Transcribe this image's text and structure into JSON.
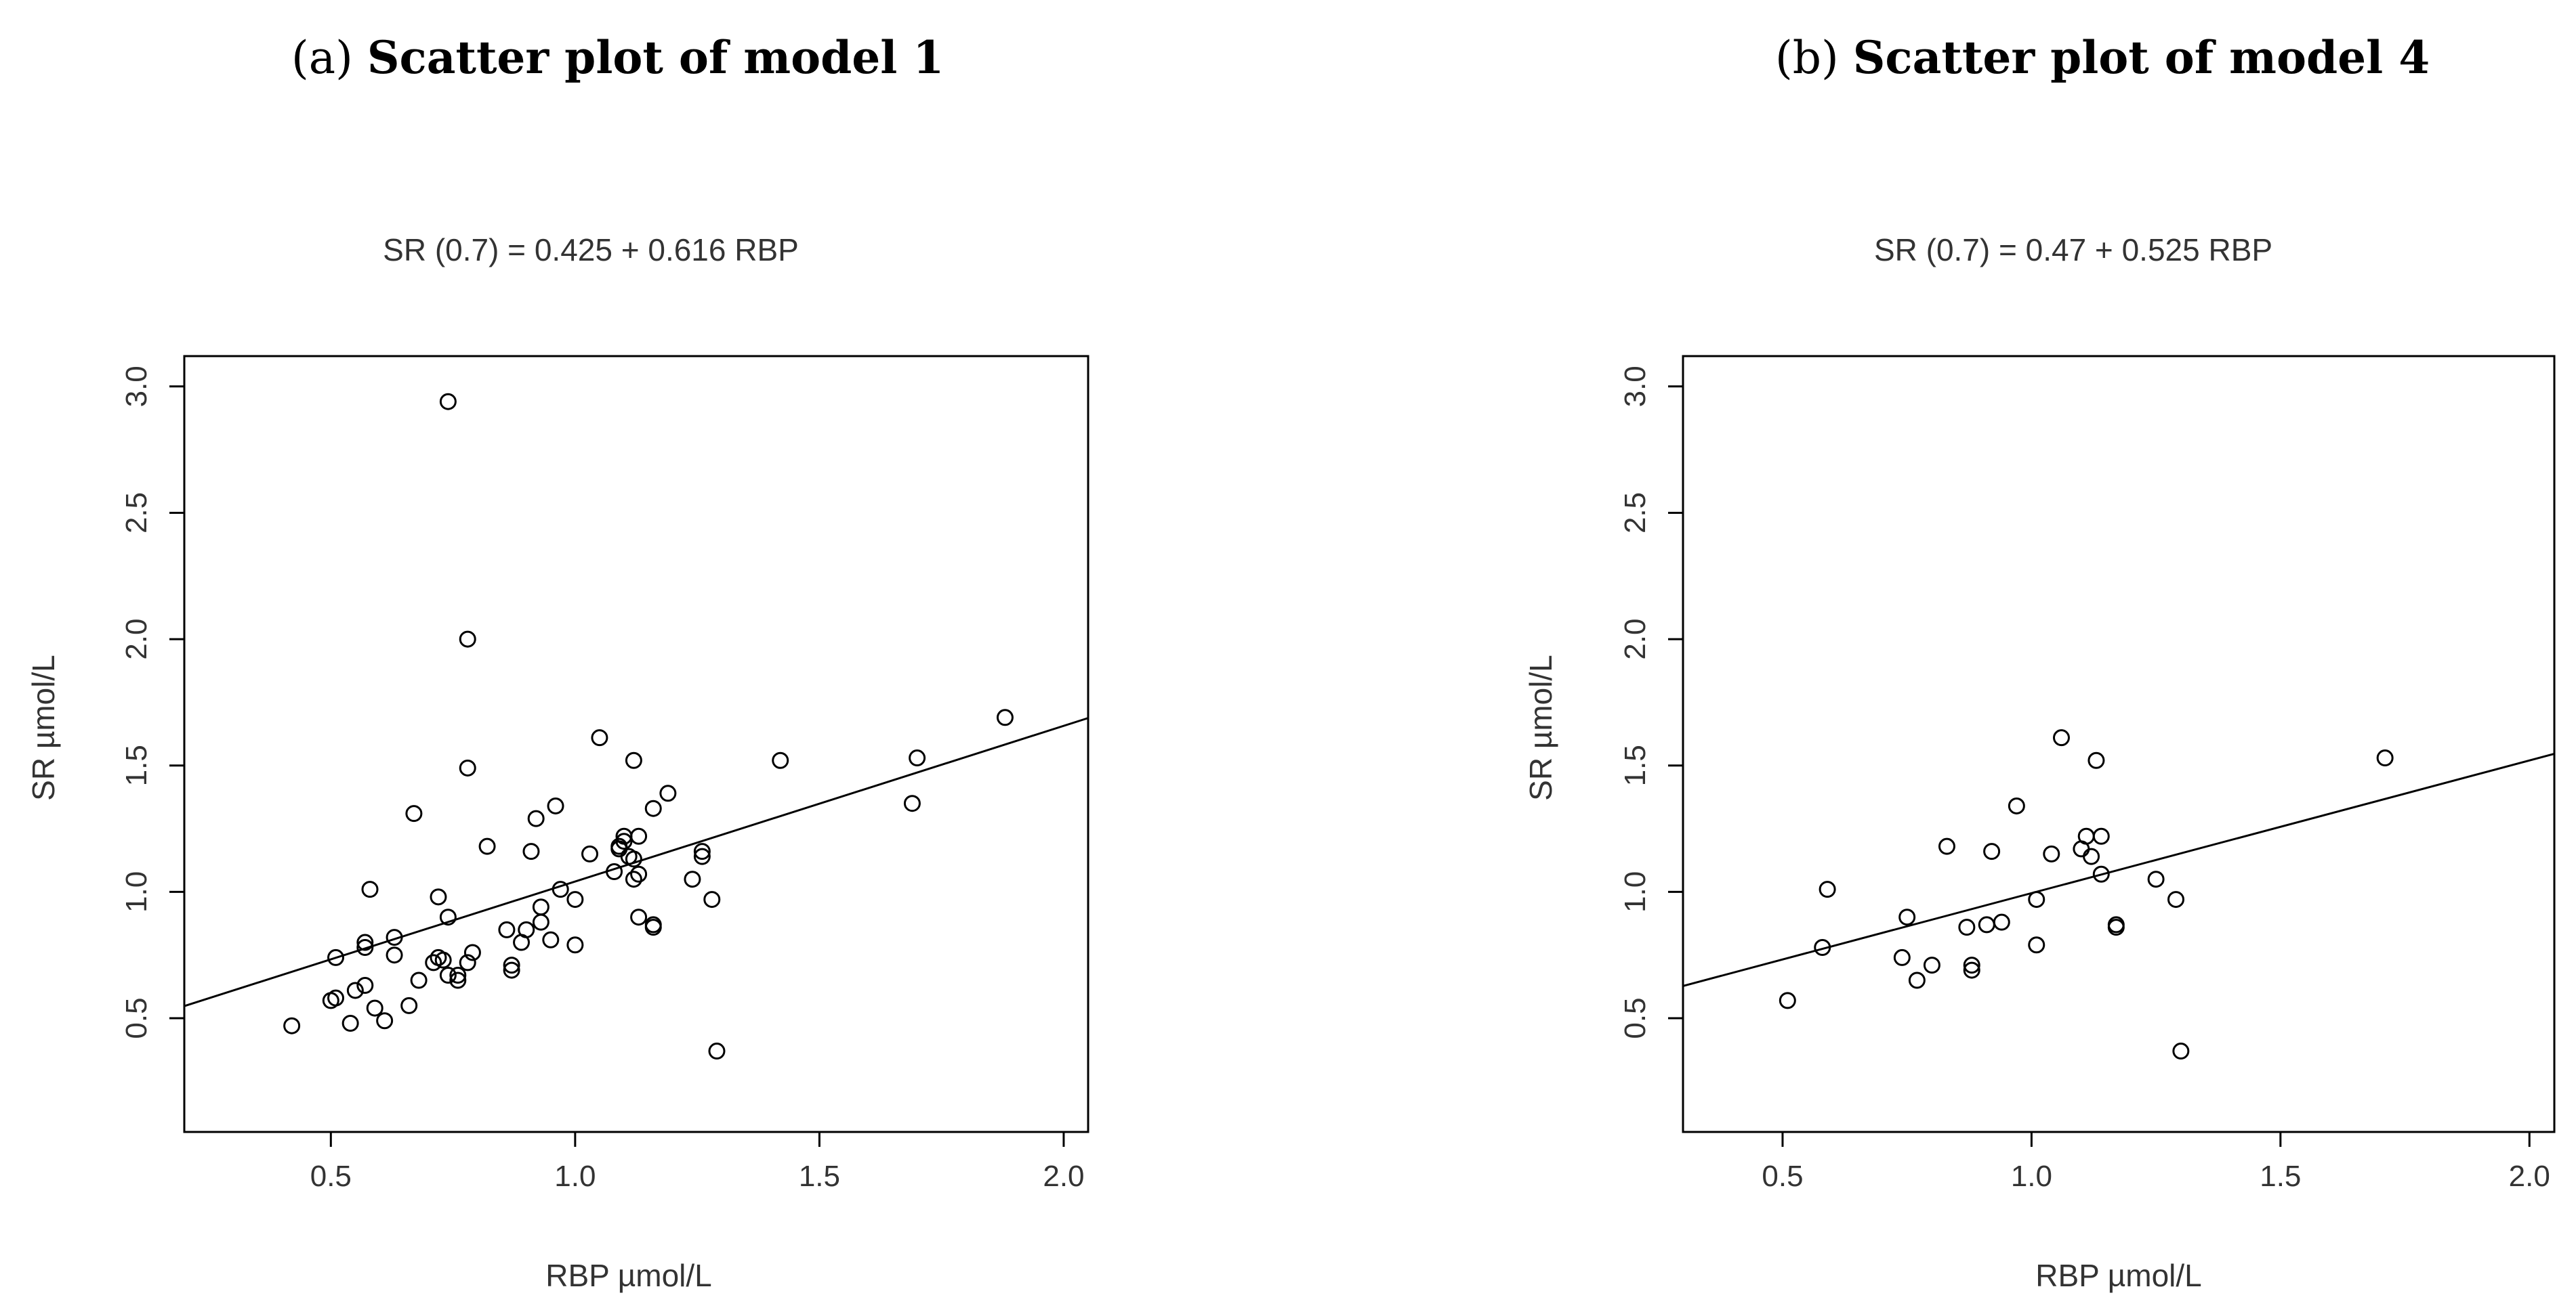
{
  "panels": [
    {
      "label": "(a)",
      "title": "Scatter plot of model 1"
    },
    {
      "label": "(b)",
      "title": "Scatter plot of model 4"
    }
  ],
  "chart_data": [
    {
      "type": "scatter",
      "title": "SR (0.7) = 0.425 + 0.616 RBP",
      "xlabel": "RBP µmol/L",
      "ylabel": "SR µmol/L",
      "xlim": [
        0.2,
        2.05
      ],
      "ylim": [
        0.05,
        3.12
      ],
      "xticks": [
        0.5,
        1.0,
        1.5,
        2.0
      ],
      "xtick_labels": [
        "0.5",
        "1.0",
        "1.5",
        "2.0"
      ],
      "yticks": [
        0.5,
        1.0,
        1.5,
        2.0,
        2.5,
        3.0
      ],
      "ytick_labels": [
        "0.5",
        "1.0",
        "1.5",
        "2.0",
        "2.5",
        "3.0"
      ],
      "fit": {
        "intercept": 0.425,
        "slope": 0.616
      },
      "points": [
        [
          0.42,
          0.47
        ],
        [
          0.5,
          0.57
        ],
        [
          0.51,
          0.58
        ],
        [
          0.51,
          0.74
        ],
        [
          0.54,
          0.48
        ],
        [
          0.55,
          0.61
        ],
        [
          0.57,
          0.63
        ],
        [
          0.57,
          0.78
        ],
        [
          0.57,
          0.8
        ],
        [
          0.58,
          1.01
        ],
        [
          0.59,
          0.54
        ],
        [
          0.61,
          0.49
        ],
        [
          0.63,
          0.75
        ],
        [
          0.63,
          0.82
        ],
        [
          0.66,
          0.55
        ],
        [
          0.67,
          1.31
        ],
        [
          0.68,
          0.65
        ],
        [
          0.71,
          0.72
        ],
        [
          0.72,
          0.74
        ],
        [
          0.72,
          0.98
        ],
        [
          0.73,
          0.73
        ],
        [
          0.74,
          0.67
        ],
        [
          0.74,
          0.9
        ],
        [
          0.74,
          2.94
        ],
        [
          0.76,
          0.65
        ],
        [
          0.76,
          0.67
        ],
        [
          0.78,
          0.72
        ],
        [
          0.78,
          1.49
        ],
        [
          0.78,
          2.0
        ],
        [
          0.79,
          0.76
        ],
        [
          0.82,
          1.18
        ],
        [
          0.86,
          0.85
        ],
        [
          0.87,
          0.69
        ],
        [
          0.87,
          0.71
        ],
        [
          0.89,
          0.8
        ],
        [
          0.9,
          0.85
        ],
        [
          0.91,
          1.16
        ],
        [
          0.92,
          1.29
        ],
        [
          0.93,
          0.88
        ],
        [
          0.93,
          0.94
        ],
        [
          0.95,
          0.81
        ],
        [
          0.96,
          1.34
        ],
        [
          0.97,
          1.01
        ],
        [
          1.0,
          0.79
        ],
        [
          1.0,
          0.97
        ],
        [
          1.03,
          1.15
        ],
        [
          1.05,
          1.61
        ],
        [
          1.08,
          1.08
        ],
        [
          1.09,
          1.17
        ],
        [
          1.09,
          1.18
        ],
        [
          1.1,
          1.2
        ],
        [
          1.1,
          1.22
        ],
        [
          1.11,
          1.14
        ],
        [
          1.12,
          1.05
        ],
        [
          1.12,
          1.13
        ],
        [
          1.12,
          1.52
        ],
        [
          1.13,
          0.9
        ],
        [
          1.13,
          1.07
        ],
        [
          1.13,
          1.22
        ],
        [
          1.16,
          0.86
        ],
        [
          1.16,
          0.87
        ],
        [
          1.16,
          1.33
        ],
        [
          1.19,
          1.39
        ],
        [
          1.24,
          1.05
        ],
        [
          1.26,
          1.14
        ],
        [
          1.26,
          1.16
        ],
        [
          1.28,
          0.97
        ],
        [
          1.29,
          0.37
        ],
        [
          1.42,
          1.52
        ],
        [
          1.69,
          1.35
        ],
        [
          1.7,
          1.53
        ],
        [
          1.88,
          1.69
        ]
      ]
    },
    {
      "type": "scatter",
      "title": "SR (0.7) = 0.47 + 0.525 RBP",
      "xlabel": "RBP µmol/L",
      "ylabel": "SR µmol/L",
      "xlim": [
        0.3,
        2.05
      ],
      "ylim": [
        0.05,
        3.12
      ],
      "xticks": [
        0.5,
        1.0,
        1.5,
        2.0
      ],
      "xtick_labels": [
        "0.5",
        "1.0",
        "1.5",
        "2.0"
      ],
      "yticks": [
        0.5,
        1.0,
        1.5,
        2.0,
        2.5,
        3.0
      ],
      "ytick_labels": [
        "0.5",
        "1.0",
        "1.5",
        "2.0",
        "2.5",
        "3.0"
      ],
      "fit": {
        "intercept": 0.47,
        "slope": 0.525
      },
      "points": [
        [
          0.51,
          0.57
        ],
        [
          0.58,
          0.78
        ],
        [
          0.59,
          1.01
        ],
        [
          0.74,
          0.74
        ],
        [
          0.75,
          0.9
        ],
        [
          0.77,
          0.65
        ],
        [
          0.8,
          0.71
        ],
        [
          0.83,
          1.18
        ],
        [
          0.87,
          0.86
        ],
        [
          0.88,
          0.69
        ],
        [
          0.88,
          0.71
        ],
        [
          0.91,
          0.87
        ],
        [
          0.92,
          1.16
        ],
        [
          0.94,
          0.88
        ],
        [
          0.97,
          1.34
        ],
        [
          1.01,
          0.79
        ],
        [
          1.01,
          0.97
        ],
        [
          1.04,
          1.15
        ],
        [
          1.06,
          1.61
        ],
        [
          1.1,
          1.17
        ],
        [
          1.11,
          1.22
        ],
        [
          1.12,
          1.14
        ],
        [
          1.13,
          1.52
        ],
        [
          1.14,
          1.22
        ],
        [
          1.14,
          1.07
        ],
        [
          1.17,
          0.86
        ],
        [
          1.17,
          0.87
        ],
        [
          1.25,
          1.05
        ],
        [
          1.29,
          0.97
        ],
        [
          1.3,
          0.37
        ],
        [
          1.71,
          1.53
        ]
      ]
    }
  ]
}
